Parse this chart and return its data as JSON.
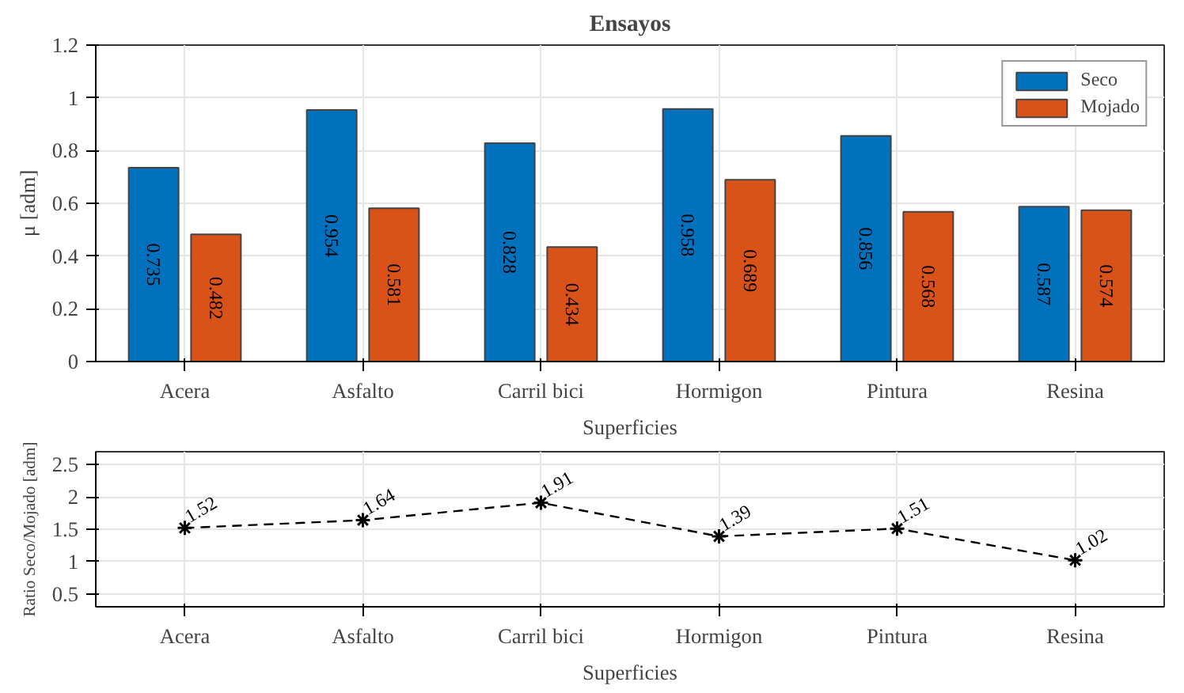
{
  "chart_data": [
    {
      "type": "bar",
      "title": "Ensayos",
      "xlabel": "Superficies",
      "ylabel": "μ [adm]",
      "categories": [
        "Acera",
        "Asfalto",
        "Carril bici",
        "Hormigon",
        "Pintura",
        "Resina"
      ],
      "series": [
        {
          "name": "Seco",
          "color": "#0072bd",
          "values": [
            0.735,
            0.954,
            0.828,
            0.958,
            0.856,
            0.587
          ]
        },
        {
          "name": "Mojado",
          "color": "#d95319",
          "values": [
            0.482,
            0.581,
            0.434,
            0.689,
            0.568,
            0.574
          ]
        }
      ],
      "ylim": [
        0,
        1.2
      ],
      "yticks": [
        0,
        0.2,
        0.4,
        0.6,
        0.8,
        1,
        1.2
      ],
      "grid": true,
      "legend": "top right",
      "data_labels": true
    },
    {
      "type": "line",
      "xlabel": "Superficies",
      "ylabel": "Ratio Seco/Mojado [adm]",
      "categories": [
        "Acera",
        "Asfalto",
        "Carril bici",
        "Hormigon",
        "Pintura",
        "Resina"
      ],
      "series": [
        {
          "color": "#000000",
          "values": [
            1.52,
            1.64,
            1.91,
            1.39,
            1.51,
            1.02
          ]
        }
      ],
      "ylim": [
        0.3,
        2.7
      ],
      "yticks": [
        0.5,
        1,
        1.5,
        2,
        2.5
      ],
      "grid": true,
      "marker": "cross",
      "line_style": "dashed",
      "data_labels": true
    }
  ]
}
